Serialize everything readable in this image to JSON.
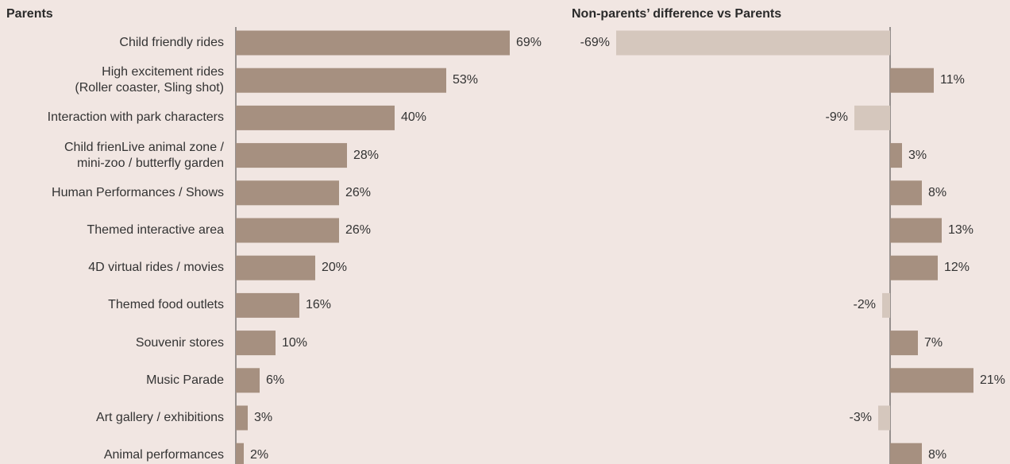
{
  "left_panel": {
    "title": "Parents"
  },
  "right_panel": {
    "title": "Non-parents’ difference vs Parents"
  },
  "colors": {
    "background": "#f1e6e2",
    "bar_positive": "#a69080",
    "bar_negative": "#d5c7bd",
    "axis": "#3a3a3a",
    "text": "#333333"
  },
  "chart_data": [
    {
      "type": "bar",
      "orientation": "horizontal",
      "title": "Parents",
      "categories": [
        "Child friendly rides",
        "High excitement rides\n(Roller coaster, Sling shot)",
        "Interaction with park characters",
        "Child frienLive animal zone /\nmini-zoo / butterfly garden",
        "Human Performances / Shows",
        "Themed interactive area",
        "4D virtual rides / movies",
        "Themed food outlets",
        "Souvenir stores",
        "Music Parade",
        "Art gallery / exhibitions",
        "Animal performances"
      ],
      "values": [
        69,
        53,
        40,
        28,
        26,
        26,
        20,
        16,
        10,
        6,
        3,
        2
      ],
      "value_labels": [
        "69%",
        "53%",
        "40%",
        "28%",
        "26%",
        "26%",
        "20%",
        "16%",
        "10%",
        "6%",
        "3%",
        "2%"
      ],
      "unit": "%",
      "xlim": [
        0,
        100
      ],
      "grid": false,
      "legend": "none"
    },
    {
      "type": "bar",
      "orientation": "horizontal",
      "title": "Non-parents’ difference vs Parents",
      "categories": [
        "Child friendly rides",
        "High excitement rides\n(Roller coaster, Sling shot)",
        "Interaction with park characters",
        "Child frienLive animal zone /\nmini-zoo / butterfly garden",
        "Human Performances / Shows",
        "Themed interactive area",
        "4D virtual rides / movies",
        "Themed food outlets",
        "Souvenir stores",
        "Music Parade",
        "Art gallery / exhibitions",
        "Animal performances"
      ],
      "values": [
        -69,
        11,
        -9,
        3,
        8,
        13,
        12,
        -2,
        7,
        21,
        -3,
        8
      ],
      "value_labels": [
        "-69%",
        "11%",
        "-9%",
        "3%",
        "8%",
        "13%",
        "12%",
        "-2%",
        "7%",
        "21%",
        "-3%",
        "8%"
      ],
      "unit": "%",
      "xlim": [
        -69,
        30
      ],
      "grid": false,
      "legend": "none"
    }
  ]
}
